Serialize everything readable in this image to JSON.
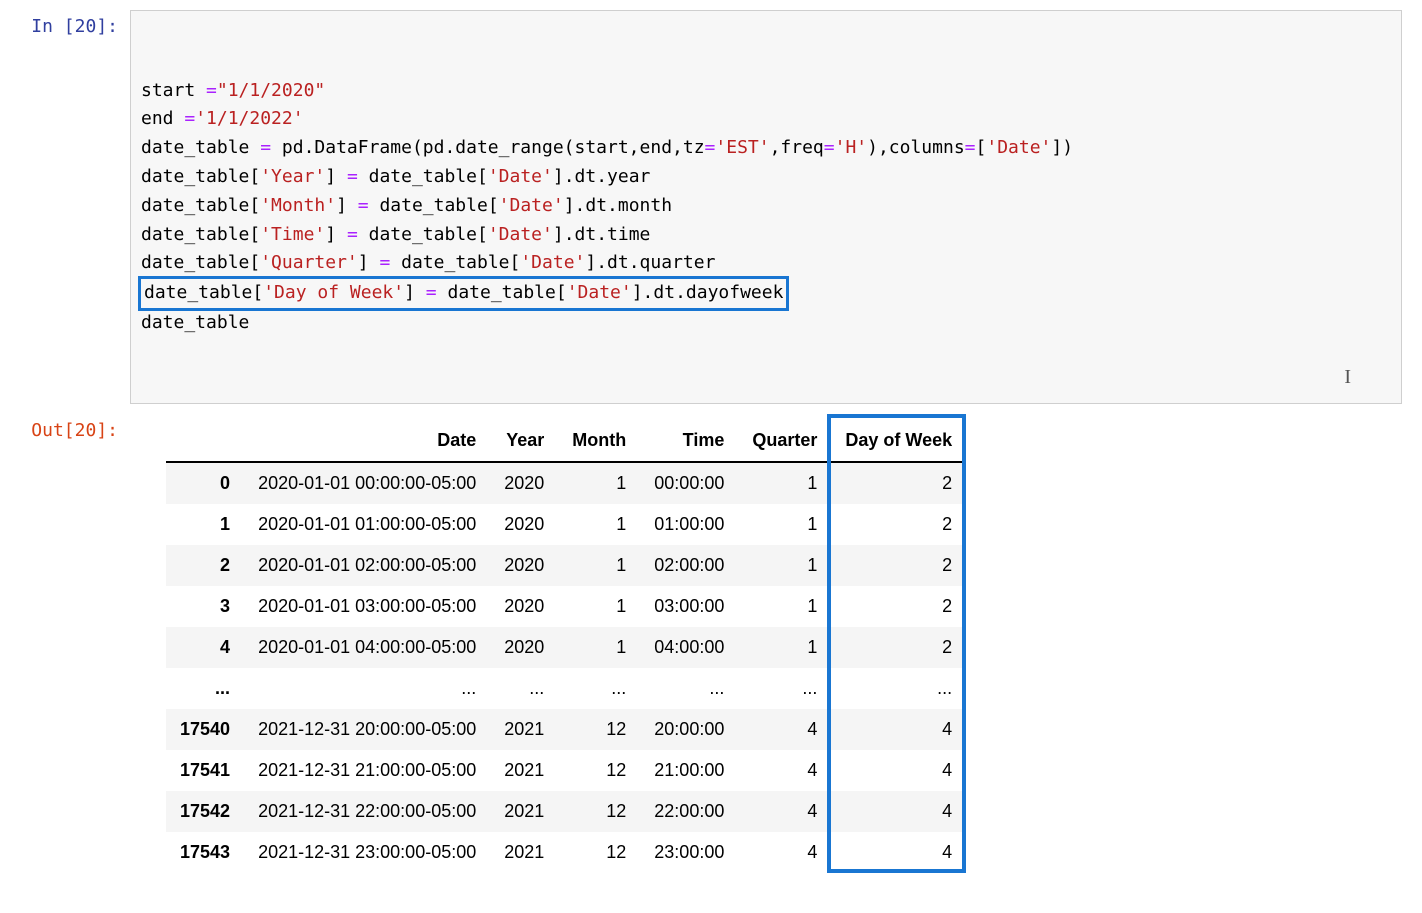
{
  "execution_count": "20",
  "prompt_in_prefix": "In [",
  "prompt_out_prefix": "Out[",
  "prompt_suffix": "]:",
  "code": {
    "lines": [
      [
        {
          "t": "start ",
          "c": "plain"
        },
        {
          "t": "=",
          "c": "op"
        },
        {
          "t": "\"1/1/2020\"",
          "c": "str"
        }
      ],
      [
        {
          "t": "end ",
          "c": "plain"
        },
        {
          "t": "=",
          "c": "op"
        },
        {
          "t": "'1/1/2022'",
          "c": "str"
        }
      ],
      [
        {
          "t": "date_table ",
          "c": "plain"
        },
        {
          "t": "=",
          "c": "op"
        },
        {
          "t": " pd.DataFrame(pd.date_range(start,end,tz",
          "c": "plain"
        },
        {
          "t": "=",
          "c": "op"
        },
        {
          "t": "'EST'",
          "c": "str"
        },
        {
          "t": ",freq",
          "c": "plain"
        },
        {
          "t": "=",
          "c": "op"
        },
        {
          "t": "'H'",
          "c": "str"
        },
        {
          "t": "),columns",
          "c": "plain"
        },
        {
          "t": "=",
          "c": "op"
        },
        {
          "t": "[",
          "c": "plain"
        },
        {
          "t": "'Date'",
          "c": "str"
        },
        {
          "t": "])",
          "c": "plain"
        }
      ],
      [
        {
          "t": "date_table[",
          "c": "plain"
        },
        {
          "t": "'Year'",
          "c": "str"
        },
        {
          "t": "] ",
          "c": "plain"
        },
        {
          "t": "=",
          "c": "op"
        },
        {
          "t": " date_table[",
          "c": "plain"
        },
        {
          "t": "'Date'",
          "c": "str"
        },
        {
          "t": "].dt.year",
          "c": "plain"
        }
      ],
      [
        {
          "t": "date_table[",
          "c": "plain"
        },
        {
          "t": "'Month'",
          "c": "str"
        },
        {
          "t": "] ",
          "c": "plain"
        },
        {
          "t": "=",
          "c": "op"
        },
        {
          "t": " date_table[",
          "c": "plain"
        },
        {
          "t": "'Date'",
          "c": "str"
        },
        {
          "t": "].dt.month",
          "c": "plain"
        }
      ],
      [
        {
          "t": "date_table[",
          "c": "plain"
        },
        {
          "t": "'Time'",
          "c": "str"
        },
        {
          "t": "] ",
          "c": "plain"
        },
        {
          "t": "=",
          "c": "op"
        },
        {
          "t": " date_table[",
          "c": "plain"
        },
        {
          "t": "'Date'",
          "c": "str"
        },
        {
          "t": "].dt.time",
          "c": "plain"
        }
      ],
      [
        {
          "t": "date_table[",
          "c": "plain"
        },
        {
          "t": "'Quarter'",
          "c": "str"
        },
        {
          "t": "] ",
          "c": "plain"
        },
        {
          "t": "=",
          "c": "op"
        },
        {
          "t": " date_table[",
          "c": "plain"
        },
        {
          "t": "'Date'",
          "c": "str"
        },
        {
          "t": "].dt.quarter",
          "c": "plain"
        }
      ],
      [
        {
          "t": "date_table[",
          "c": "plain"
        },
        {
          "t": "'Day of Week'",
          "c": "str"
        },
        {
          "t": "] ",
          "c": "plain"
        },
        {
          "t": "=",
          "c": "op"
        },
        {
          "t": " date_table[",
          "c": "plain"
        },
        {
          "t": "'Date'",
          "c": "str"
        },
        {
          "t": "].dt.dayofweek",
          "c": "plain"
        }
      ],
      [
        {
          "t": "date_table",
          "c": "plain"
        }
      ]
    ],
    "highlighted_line_index": 7
  },
  "table": {
    "columns": [
      "",
      "Date",
      "Year",
      "Month",
      "Time",
      "Quarter",
      "Day of Week"
    ],
    "rows": [
      {
        "idx": "0",
        "date": "2020-01-01 00:00:00-05:00",
        "year": "2020",
        "month": "1",
        "time": "00:00:00",
        "quarter": "1",
        "dow": "2"
      },
      {
        "idx": "1",
        "date": "2020-01-01 01:00:00-05:00",
        "year": "2020",
        "month": "1",
        "time": "01:00:00",
        "quarter": "1",
        "dow": "2"
      },
      {
        "idx": "2",
        "date": "2020-01-01 02:00:00-05:00",
        "year": "2020",
        "month": "1",
        "time": "02:00:00",
        "quarter": "1",
        "dow": "2"
      },
      {
        "idx": "3",
        "date": "2020-01-01 03:00:00-05:00",
        "year": "2020",
        "month": "1",
        "time": "03:00:00",
        "quarter": "1",
        "dow": "2"
      },
      {
        "idx": "4",
        "date": "2020-01-01 04:00:00-05:00",
        "year": "2020",
        "month": "1",
        "time": "04:00:00",
        "quarter": "1",
        "dow": "2"
      },
      {
        "idx": "...",
        "date": "...",
        "year": "...",
        "month": "...",
        "time": "...",
        "quarter": "...",
        "dow": "..."
      },
      {
        "idx": "17540",
        "date": "2021-12-31 20:00:00-05:00",
        "year": "2021",
        "month": "12",
        "time": "20:00:00",
        "quarter": "4",
        "dow": "4"
      },
      {
        "idx": "17541",
        "date": "2021-12-31 21:00:00-05:00",
        "year": "2021",
        "month": "12",
        "time": "21:00:00",
        "quarter": "4",
        "dow": "4"
      },
      {
        "idx": "17542",
        "date": "2021-12-31 22:00:00-05:00",
        "year": "2021",
        "month": "12",
        "time": "22:00:00",
        "quarter": "4",
        "dow": "4"
      },
      {
        "idx": "17543",
        "date": "2021-12-31 23:00:00-05:00",
        "year": "2021",
        "month": "12",
        "time": "23:00:00",
        "quarter": "4",
        "dow": "4"
      }
    ],
    "highlighted_column_index": 6,
    "stripe_color": "#f5f5f5",
    "highlight_color": "#1976d2"
  },
  "colors": {
    "code_bg": "#f7f7f7",
    "code_border": "#cfcfcf",
    "operator": "#aa22ff",
    "string": "#ba2121",
    "prompt_in": "#303f9f",
    "prompt_out": "#d84315",
    "highlight_border": "#1976d2"
  }
}
